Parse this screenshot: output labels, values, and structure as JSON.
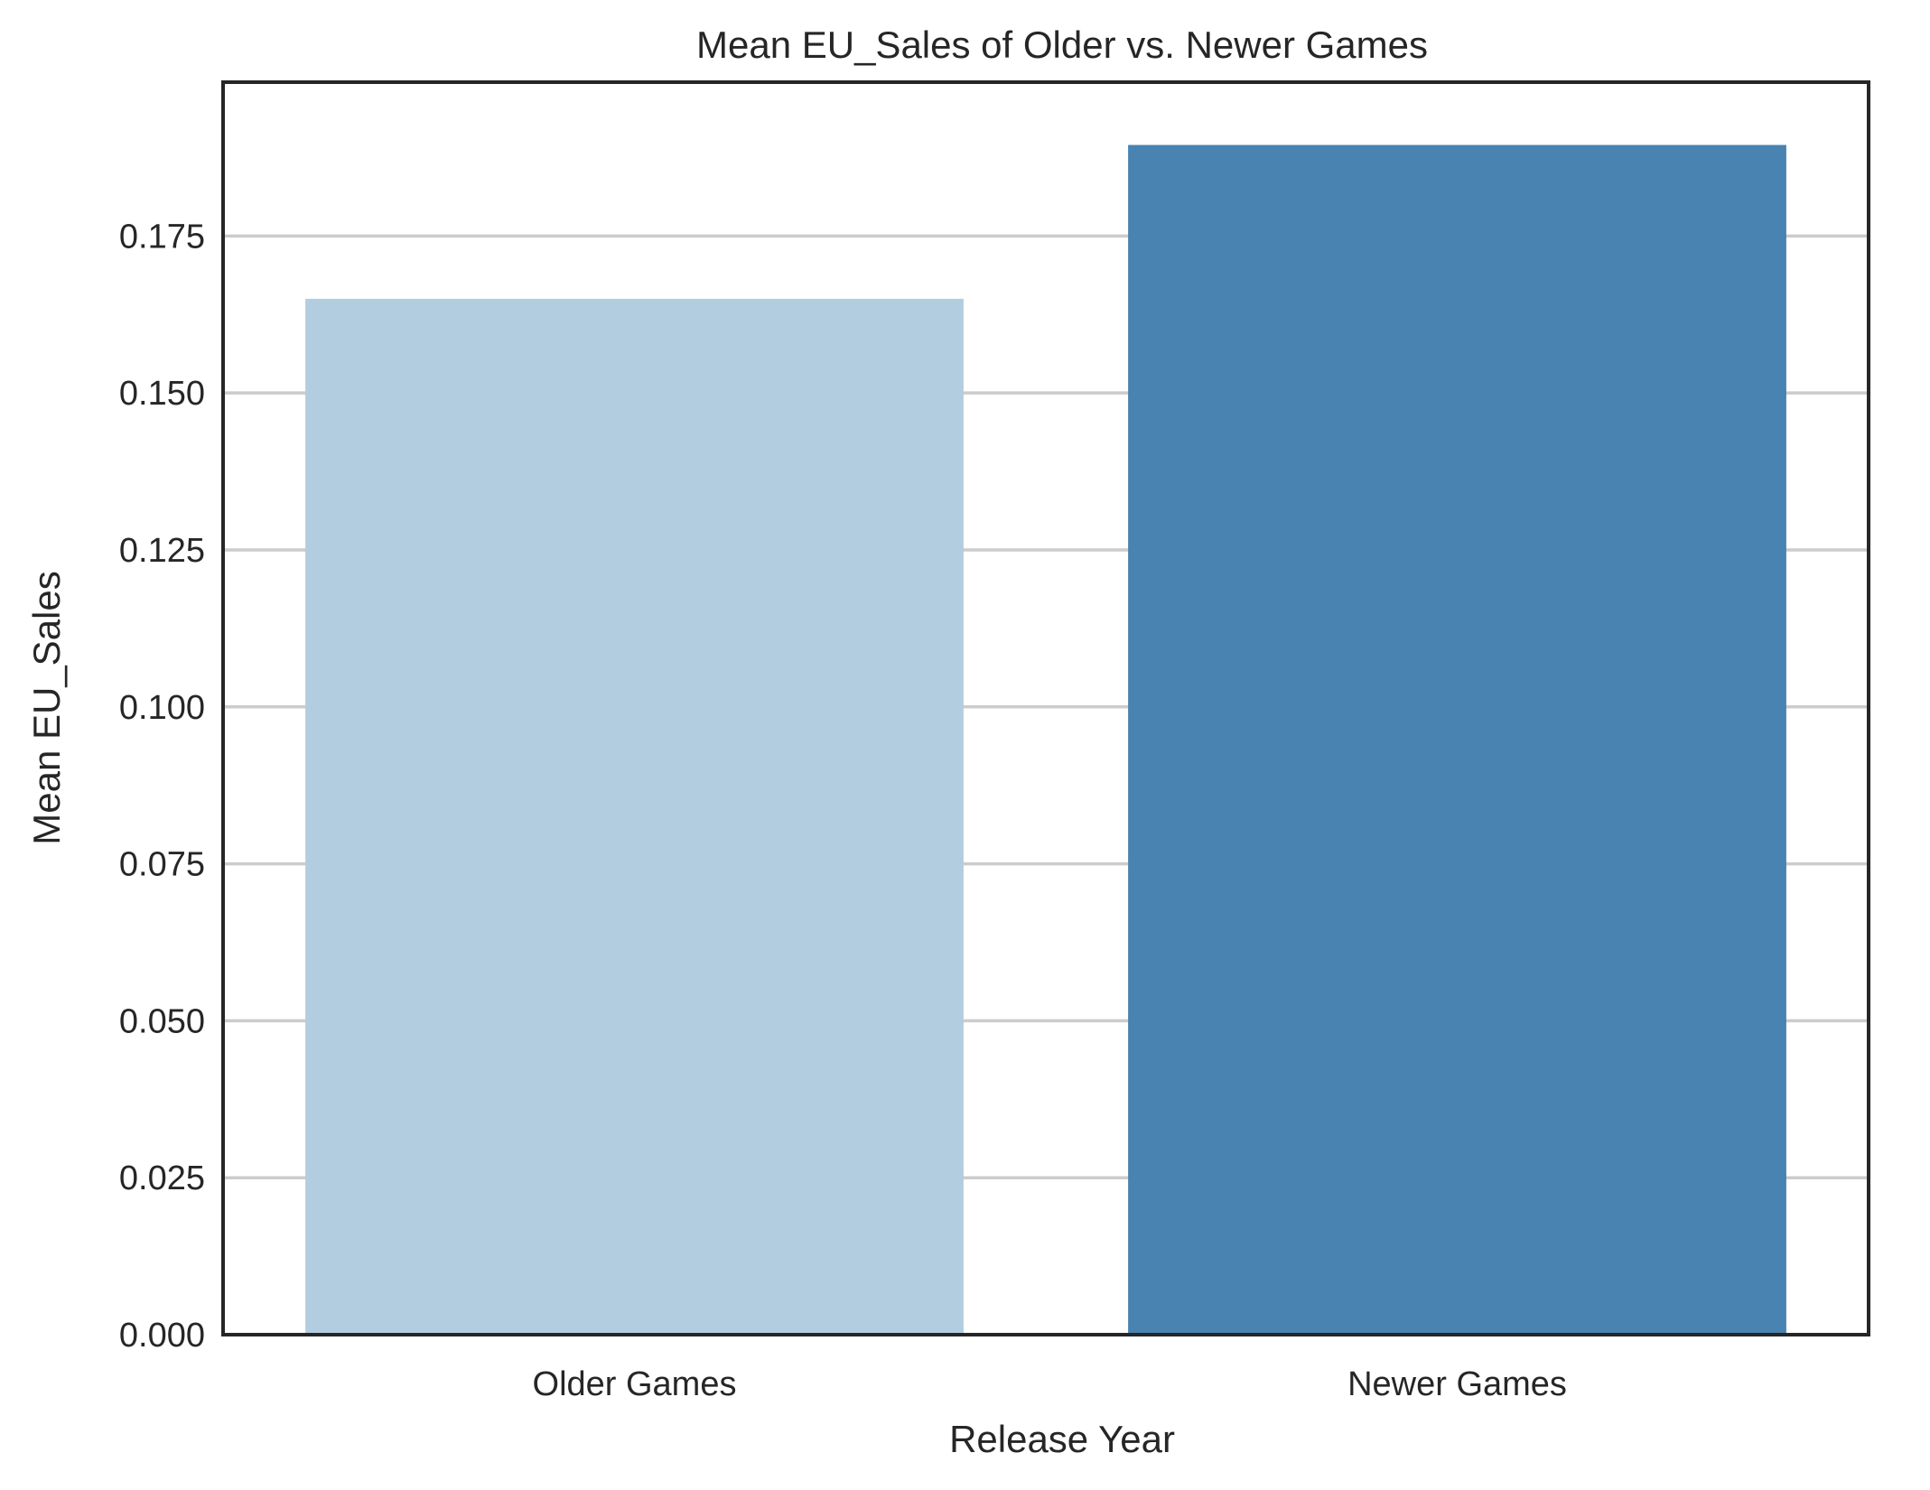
{
  "chart_data": {
    "type": "bar",
    "title": "Mean EU_Sales of Older vs. Newer Games",
    "xlabel": "Release Year",
    "ylabel": "Mean EU_Sales",
    "categories": [
      "Older Games",
      "Newer Games"
    ],
    "values": [
      0.165,
      0.1895
    ],
    "ylim": [
      0,
      0.1995
    ],
    "yticks": [
      0.0,
      0.025,
      0.05,
      0.075,
      0.1,
      0.125,
      0.15,
      0.175
    ],
    "ytick_labels": [
      "0.000",
      "0.025",
      "0.050",
      "0.075",
      "0.100",
      "0.125",
      "0.150",
      "0.175"
    ],
    "bar_colors": [
      "#b3cde0",
      "#4883b1"
    ],
    "grid": "horizontal",
    "legend": "none"
  }
}
